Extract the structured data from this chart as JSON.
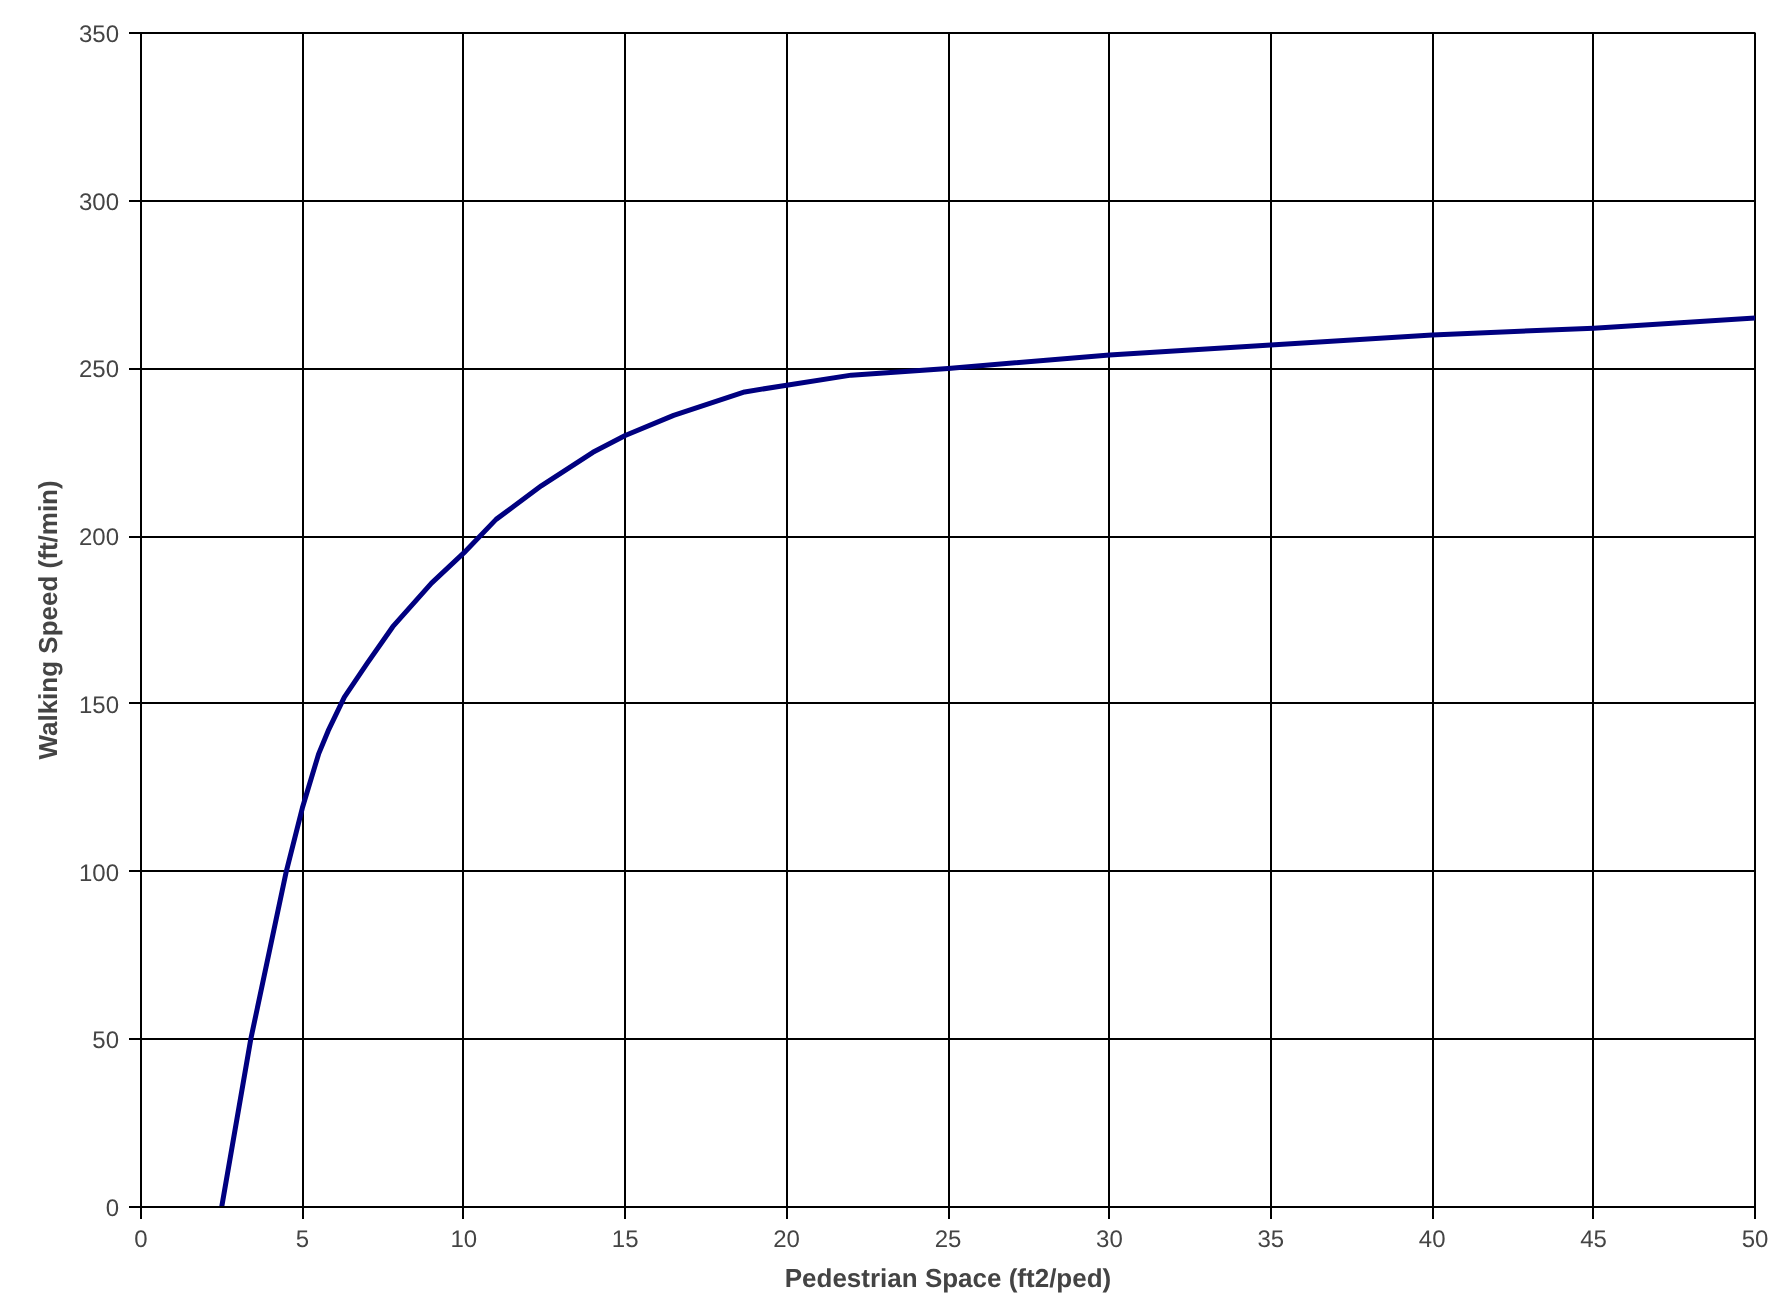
{
  "chart_data": {
    "type": "line",
    "xlabel": "Pedestrian Space (ft2/ped)",
    "ylabel": "Walking Speed (ft/min)",
    "xlim": [
      0,
      50
    ],
    "ylim": [
      0,
      350
    ],
    "xticks": [
      0,
      5,
      10,
      15,
      20,
      25,
      30,
      35,
      40,
      45,
      50
    ],
    "yticks": [
      0,
      50,
      100,
      150,
      200,
      250,
      300,
      350
    ],
    "grid": true,
    "series": [
      {
        "color": "#000080",
        "x": [
          2.5,
          3.4,
          4.5,
          5,
          5.5,
          5.8,
          6.3,
          7,
          7.8,
          9,
          10,
          11,
          12.4,
          14,
          15,
          16.5,
          18.7,
          20,
          22,
          25,
          30,
          35,
          40,
          45,
          50
        ],
        "values": [
          0,
          50,
          100,
          119,
          135,
          142,
          152,
          162,
          173,
          186,
          195,
          205,
          215,
          225,
          230,
          236,
          243,
          245,
          248,
          250,
          254,
          257,
          260,
          262,
          265
        ]
      }
    ]
  }
}
